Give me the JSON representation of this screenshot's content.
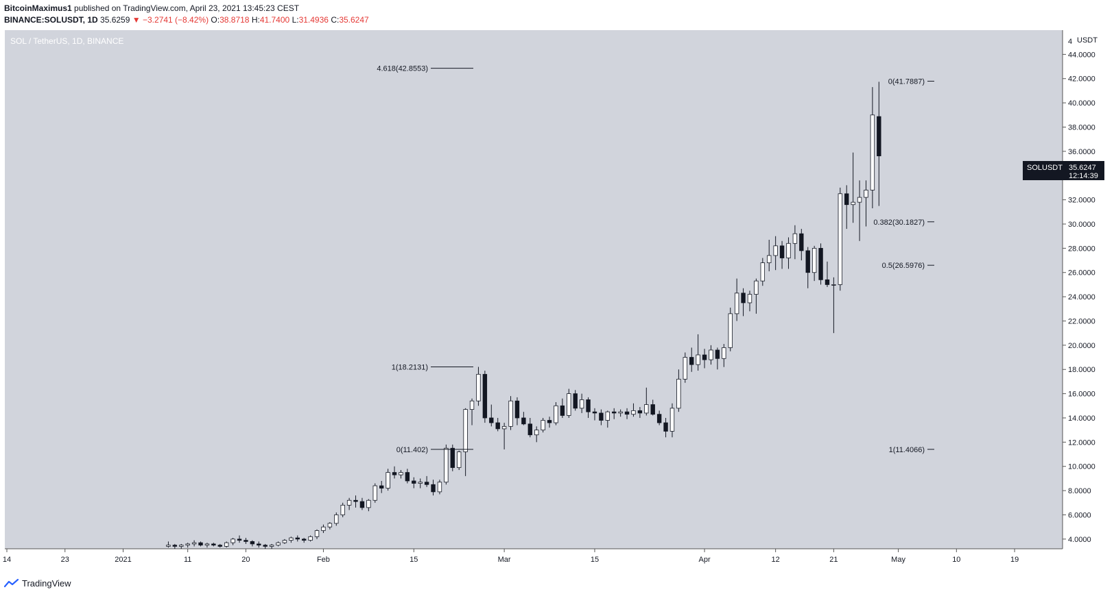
{
  "header": {
    "author": "BitcoinMaximus1",
    "published": "published on TradingView.com, April 23, 2021 13:45:23 CEST",
    "symbol": "BINANCE:SOLUSDT, 1D",
    "last": "35.6259",
    "change": "−3.2741 (−8.42%)",
    "o_label": "O:",
    "o_val": "38.8718",
    "h_label": "H:",
    "h_val": "41.7400",
    "l_label": "L:",
    "l_val": "31.4936",
    "c_label": "C:",
    "c_val": "35.6247"
  },
  "chart_title": "SOL / TetherUS, 1D, BINANCE",
  "price_badge": {
    "symbol": "SOLUSDT",
    "price": "35.6247",
    "countdown": "12:14:39"
  },
  "footer": {
    "brand": "TradingView"
  },
  "colors": {
    "background": "#d1d4dc",
    "up_fill": "#ffffff",
    "down_fill": "#131722",
    "wick": "#131722",
    "badge": "#131722"
  },
  "chart_data": {
    "type": "candlestick",
    "title": "SOL / TetherUS, 1D, BINANCE",
    "ylabel": "USDT",
    "ylim": [
      3.2,
      46
    ],
    "y_ticks": [
      4,
      6,
      8,
      10,
      12,
      14,
      16,
      18,
      20,
      22,
      24,
      26,
      28,
      30,
      32,
      34,
      36,
      38,
      40,
      42,
      44
    ],
    "y_tick_labels": [
      "4.0000",
      "6.0000",
      "8.0000",
      "10.0000",
      "12.0000",
      "14.0000",
      "16.0000",
      "18.0000",
      "20.0000",
      "22.0000",
      "24.0000",
      "26.0000",
      "28.0000",
      "30.0000",
      "32.0000",
      "34.0000",
      "36.0000",
      "38.0000",
      "40.0000",
      "42.0000",
      "44.0000"
    ],
    "y_top_label": "4",
    "x_axis": {
      "start_date": "2020-12-14",
      "end_date": "2021-05-26"
    },
    "x_ticks": [
      {
        "date": "2020-12-14",
        "label": "14"
      },
      {
        "date": "2020-12-23",
        "label": "23"
      },
      {
        "date": "2021-01-01",
        "label": "2021"
      },
      {
        "date": "2021-01-11",
        "label": "11"
      },
      {
        "date": "2021-01-20",
        "label": "20"
      },
      {
        "date": "2021-02-01",
        "label": "Feb"
      },
      {
        "date": "2021-02-15",
        "label": "15"
      },
      {
        "date": "2021-03-01",
        "label": "Mar"
      },
      {
        "date": "2021-03-15",
        "label": "15"
      },
      {
        "date": "2021-04-01",
        "label": "Apr"
      },
      {
        "date": "2021-04-12",
        "label": "12"
      },
      {
        "date": "2021-04-21",
        "label": "21"
      },
      {
        "date": "2021-05-01",
        "label": "May"
      },
      {
        "date": "2021-05-10",
        "label": "10"
      },
      {
        "date": "2021-05-19",
        "label": "19"
      }
    ],
    "series": [
      {
        "name": "SOLUSDT",
        "first_date": "2021-01-08",
        "ohlc": [
          [
            3.4,
            3.8,
            3.3,
            3.5
          ],
          [
            3.5,
            3.6,
            3.2,
            3.4
          ],
          [
            3.4,
            3.6,
            3.2,
            3.5
          ],
          [
            3.5,
            3.7,
            3.3,
            3.6
          ],
          [
            3.6,
            3.9,
            3.4,
            3.7
          ],
          [
            3.7,
            3.8,
            3.4,
            3.5
          ],
          [
            3.5,
            3.7,
            3.3,
            3.6
          ],
          [
            3.6,
            3.7,
            3.4,
            3.5
          ],
          [
            3.5,
            3.6,
            3.3,
            3.4
          ],
          [
            3.4,
            3.8,
            3.3,
            3.7
          ],
          [
            3.7,
            4.1,
            3.5,
            4.0
          ],
          [
            4.0,
            4.3,
            3.7,
            3.9
          ],
          [
            3.9,
            4.1,
            3.6,
            3.8
          ],
          [
            3.8,
            3.9,
            3.4,
            3.6
          ],
          [
            3.6,
            3.8,
            3.3,
            3.5
          ],
          [
            3.5,
            3.6,
            3.2,
            3.4
          ],
          [
            3.4,
            3.6,
            3.2,
            3.5
          ],
          [
            3.5,
            3.8,
            3.4,
            3.7
          ],
          [
            3.7,
            4.0,
            3.6,
            3.9
          ],
          [
            3.9,
            4.2,
            3.7,
            4.1
          ],
          [
            4.1,
            4.3,
            3.8,
            4.0
          ],
          [
            4.0,
            4.1,
            3.7,
            3.9
          ],
          [
            3.9,
            4.3,
            3.8,
            4.2
          ],
          [
            4.2,
            4.8,
            4.0,
            4.7
          ],
          [
            4.7,
            5.2,
            4.5,
            5.0
          ],
          [
            5.0,
            5.4,
            4.8,
            5.3
          ],
          [
            5.3,
            6.2,
            5.1,
            6.0
          ],
          [
            6.0,
            7.0,
            5.8,
            6.8
          ],
          [
            6.8,
            7.4,
            6.4,
            7.2
          ],
          [
            7.2,
            7.6,
            6.6,
            7.1
          ],
          [
            7.1,
            7.4,
            6.4,
            6.6
          ],
          [
            6.6,
            7.3,
            6.3,
            7.2
          ],
          [
            7.2,
            8.6,
            7.0,
            8.4
          ],
          [
            8.4,
            8.8,
            7.8,
            8.2
          ],
          [
            8.2,
            9.8,
            8.0,
            9.5
          ],
          [
            9.5,
            10.0,
            9.0,
            9.3
          ],
          [
            9.3,
            9.7,
            9.0,
            9.5
          ],
          [
            9.5,
            9.8,
            8.6,
            8.8
          ],
          [
            8.8,
            9.1,
            8.2,
            8.6
          ],
          [
            8.6,
            9.0,
            8.2,
            8.7
          ],
          [
            8.7,
            9.2,
            8.3,
            8.5
          ],
          [
            8.5,
            8.9,
            7.6,
            7.9
          ],
          [
            7.9,
            8.9,
            7.7,
            8.7
          ],
          [
            8.7,
            11.8,
            8.5,
            11.5
          ],
          [
            11.5,
            11.8,
            9.6,
            9.9
          ],
          [
            9.9,
            11.3,
            9.7,
            11.2
          ],
          [
            11.2,
            14.8,
            9.2,
            14.7
          ],
          [
            14.7,
            15.6,
            13.4,
            15.4
          ],
          [
            15.4,
            18.21,
            15.0,
            17.6
          ],
          [
            17.6,
            17.9,
            13.6,
            14.0
          ],
          [
            14.0,
            15.1,
            13.3,
            13.6
          ],
          [
            13.6,
            14.0,
            12.9,
            13.1
          ],
          [
            13.1,
            13.6,
            11.4,
            13.3
          ],
          [
            13.3,
            15.8,
            13.0,
            15.4
          ],
          [
            15.4,
            15.7,
            13.4,
            14.0
          ],
          [
            14.0,
            14.5,
            13.4,
            13.5
          ],
          [
            13.5,
            14.0,
            12.4,
            12.6
          ],
          [
            12.6,
            13.3,
            12.0,
            13.0
          ],
          [
            13.0,
            14.0,
            12.8,
            13.8
          ],
          [
            13.8,
            14.1,
            13.2,
            13.6
          ],
          [
            13.6,
            15.3,
            13.4,
            15.0
          ],
          [
            15.0,
            15.6,
            14.0,
            14.2
          ],
          [
            14.2,
            16.4,
            14.0,
            16.0
          ],
          [
            16.0,
            16.3,
            14.6,
            14.8
          ],
          [
            14.8,
            16.0,
            14.4,
            15.5
          ],
          [
            15.5,
            15.7,
            14.0,
            14.5
          ],
          [
            14.5,
            14.8,
            13.8,
            14.4
          ],
          [
            14.4,
            14.7,
            13.4,
            13.8
          ],
          [
            13.8,
            14.6,
            13.2,
            14.5
          ],
          [
            14.5,
            14.8,
            13.9,
            14.4
          ],
          [
            14.4,
            14.7,
            14.1,
            14.5
          ],
          [
            14.5,
            14.8,
            13.9,
            14.3
          ],
          [
            14.3,
            15.2,
            14.1,
            14.6
          ],
          [
            14.6,
            14.9,
            14.0,
            14.4
          ],
          [
            14.4,
            16.5,
            14.2,
            15.1
          ],
          [
            15.1,
            15.5,
            14.2,
            14.3
          ],
          [
            14.3,
            14.6,
            13.4,
            13.6
          ],
          [
            13.6,
            14.0,
            12.4,
            12.9
          ],
          [
            12.9,
            15.2,
            12.4,
            14.8
          ],
          [
            14.8,
            18.0,
            14.5,
            17.2
          ],
          [
            17.2,
            19.4,
            16.9,
            19.0
          ],
          [
            19.0,
            19.8,
            17.8,
            18.4
          ],
          [
            18.4,
            20.9,
            17.9,
            19.2
          ],
          [
            19.2,
            19.7,
            18.1,
            18.8
          ],
          [
            18.8,
            20.0,
            18.4,
            19.6
          ],
          [
            19.6,
            19.8,
            18.0,
            18.9
          ],
          [
            18.9,
            20.1,
            18.2,
            19.8
          ],
          [
            19.8,
            23.1,
            19.5,
            22.6
          ],
          [
            22.6,
            25.5,
            22.0,
            24.3
          ],
          [
            24.3,
            24.7,
            22.4,
            23.5
          ],
          [
            23.5,
            24.5,
            22.8,
            24.2
          ],
          [
            24.2,
            25.5,
            22.6,
            25.3
          ],
          [
            25.3,
            27.2,
            24.9,
            26.8
          ],
          [
            26.8,
            28.7,
            26.1,
            27.4
          ],
          [
            27.4,
            29.0,
            26.2,
            28.2
          ],
          [
            28.2,
            28.6,
            26.3,
            27.2
          ],
          [
            27.2,
            28.9,
            26.3,
            28.4
          ],
          [
            28.4,
            29.9,
            27.1,
            29.2
          ],
          [
            29.2,
            29.6,
            27.0,
            27.8
          ],
          [
            27.8,
            28.1,
            24.7,
            26.0
          ],
          [
            26.0,
            28.2,
            25.3,
            28.0
          ],
          [
            28.0,
            28.4,
            25.0,
            25.4
          ],
          [
            25.4,
            26.9,
            24.8,
            25.0
          ],
          [
            25.0,
            25.6,
            21.0,
            25.0
          ],
          [
            25.0,
            33.0,
            24.5,
            32.5
          ],
          [
            32.5,
            33.2,
            29.6,
            31.6
          ],
          [
            31.6,
            35.9,
            30.1,
            31.8
          ],
          [
            31.8,
            33.6,
            28.6,
            32.2
          ],
          [
            32.2,
            33.6,
            29.8,
            32.8
          ],
          [
            32.8,
            41.3,
            31.3,
            39.0
          ],
          [
            38.87,
            41.74,
            31.49,
            35.62
          ]
        ]
      }
    ],
    "annotations": [
      {
        "label": "4.618(42.8553)",
        "value": 42.8553
      },
      {
        "label": "1(18.2131)",
        "value": 18.2131
      },
      {
        "label": "0(11.402)",
        "value": 11.402
      },
      {
        "label": "0(41.7887)",
        "value": 41.7887
      },
      {
        "label": "0.382(30.1827)",
        "value": 30.1827
      },
      {
        "label": "0.5(26.5976)",
        "value": 26.5976
      },
      {
        "label": "1(11.4066)",
        "value": 11.4066
      }
    ],
    "grid": false,
    "legend": "none"
  }
}
